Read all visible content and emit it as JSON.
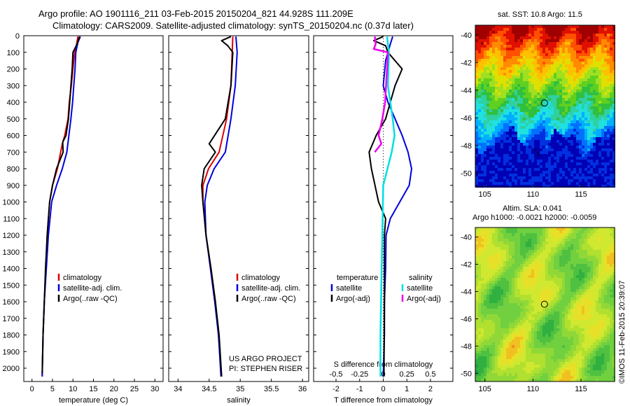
{
  "header": {
    "line1": "Argo profile: AO 1901116_211 03-Feb-2015 20150204_821 44.928S 111.209E",
    "line2": "Climatology: CARS2009. Satellite-adjusted climatology: synTS_20150204.nc (0.37d later)"
  },
  "credit": "©IMOS 11-Feb-2015 20:39:07",
  "colors": {
    "climatology": "#dd0000",
    "satellite": "#0000dd",
    "argo": "#000000",
    "satellite_s": "#00e0e0",
    "argo_s": "#ee00ee"
  },
  "chart_data": [
    {
      "type": "line",
      "panel": "temperature",
      "xlabel": "temperature (deg C)",
      "xticks": [
        "0",
        "5",
        "10",
        "15",
        "20",
        "25",
        "30"
      ],
      "xlim": [
        -2,
        32
      ],
      "ylim": [
        0,
        2080
      ],
      "yticks": [
        "0",
        "100",
        "200",
        "300",
        "400",
        "500",
        "600",
        "700",
        "800",
        "900",
        "1000",
        "1100",
        "1200",
        "1300",
        "1400",
        "1500",
        "1600",
        "1700",
        "1800",
        "1900",
        "2000"
      ],
      "legend": {
        "position": "lower-middle",
        "entries": [
          "climatology",
          "satellite-adj. clim.",
          "Argo(..raw -QC)"
        ]
      },
      "series": [
        {
          "name": "climatology",
          "color": "climatology",
          "points": [
            [
              11.2,
              5
            ],
            [
              10.9,
              50
            ],
            [
              10.4,
              100
            ],
            [
              10.0,
              200
            ],
            [
              9.6,
              300
            ],
            [
              9.1,
              400
            ],
            [
              8.8,
              500
            ],
            [
              8.0,
              600
            ],
            [
              7.4,
              650
            ],
            [
              6.2,
              800
            ],
            [
              5.0,
              900
            ],
            [
              4.3,
              1000
            ],
            [
              3.7,
              1200
            ],
            [
              3.4,
              1400
            ],
            [
              3.0,
              1600
            ],
            [
              2.7,
              1800
            ],
            [
              2.5,
              2050
            ]
          ]
        },
        {
          "name": "satellite-adj. clim.",
          "color": "satellite",
          "points": [
            [
              11.8,
              5
            ],
            [
              11.2,
              40
            ],
            [
              10.7,
              100
            ],
            [
              10.5,
              200
            ],
            [
              10.2,
              300
            ],
            [
              9.9,
              400
            ],
            [
              9.5,
              500
            ],
            [
              9.0,
              600
            ],
            [
              8.5,
              700
            ],
            [
              7.4,
              800
            ],
            [
              6.0,
              900
            ],
            [
              4.8,
              1000
            ],
            [
              4.0,
              1200
            ],
            [
              3.5,
              1400
            ],
            [
              3.0,
              1600
            ],
            [
              2.7,
              1800
            ],
            [
              2.5,
              2050
            ]
          ]
        },
        {
          "name": "Argo(..raw -QC)",
          "color": "argo",
          "points": [
            [
              11.6,
              5
            ],
            [
              11.0,
              50
            ],
            [
              10.0,
              100
            ],
            [
              9.8,
              200
            ],
            [
              9.5,
              300
            ],
            [
              9.2,
              400
            ],
            [
              8.9,
              500
            ],
            [
              8.3,
              600
            ],
            [
              7.5,
              640
            ],
            [
              7.6,
              700
            ],
            [
              6.0,
              800
            ],
            [
              5.0,
              900
            ],
            [
              4.3,
              1000
            ],
            [
              3.7,
              1200
            ],
            [
              3.3,
              1400
            ],
            [
              3.0,
              1600
            ],
            [
              2.7,
              1800
            ],
            [
              2.5,
              2030
            ]
          ]
        }
      ]
    },
    {
      "type": "line",
      "panel": "salinity",
      "xlabel": "salinity",
      "xticks": [
        "34",
        "34.5",
        "35",
        "35.5",
        "36"
      ],
      "xlim": [
        33.85,
        36.1
      ],
      "ylim": [
        0,
        2080
      ],
      "legend": {
        "position": "lower-middle",
        "entries": [
          "climatology",
          "satellite-adj. clim.",
          "Argo(..raw -QC)"
        ]
      },
      "annotations": [
        "US ARGO PROJECT",
        "PI: STEPHEN RISER"
      ],
      "series": [
        {
          "name": "climatology",
          "color": "climatology",
          "points": [
            [
              34.88,
              5
            ],
            [
              34.87,
              100
            ],
            [
              34.85,
              300
            ],
            [
              34.78,
              500
            ],
            [
              34.66,
              700
            ],
            [
              34.49,
              800
            ],
            [
              34.4,
              900
            ],
            [
              34.4,
              1000
            ],
            [
              34.45,
              1200
            ],
            [
              34.53,
              1400
            ],
            [
              34.6,
              1600
            ],
            [
              34.65,
              1800
            ],
            [
              34.7,
              2050
            ]
          ]
        },
        {
          "name": "satellite-adj. clim.",
          "color": "satellite",
          "points": [
            [
              34.93,
              5
            ],
            [
              34.95,
              100
            ],
            [
              34.92,
              300
            ],
            [
              34.85,
              500
            ],
            [
              34.76,
              700
            ],
            [
              34.58,
              800
            ],
            [
              34.47,
              900
            ],
            [
              34.43,
              1000
            ],
            [
              34.45,
              1200
            ],
            [
              34.52,
              1400
            ],
            [
              34.59,
              1600
            ],
            [
              34.65,
              1800
            ],
            [
              34.69,
              2050
            ]
          ]
        },
        {
          "name": "Argo(..raw -QC)",
          "color": "argo",
          "points": [
            [
              34.85,
              5
            ],
            [
              34.7,
              30
            ],
            [
              34.8,
              60
            ],
            [
              34.88,
              100
            ],
            [
              34.85,
              300
            ],
            [
              34.76,
              500
            ],
            [
              34.5,
              650
            ],
            [
              34.6,
              700
            ],
            [
              34.42,
              800
            ],
            [
              34.38,
              900
            ],
            [
              34.4,
              1000
            ],
            [
              34.45,
              1200
            ],
            [
              34.53,
              1400
            ],
            [
              34.6,
              1600
            ],
            [
              34.66,
              1800
            ],
            [
              34.7,
              2050
            ]
          ]
        }
      ]
    },
    {
      "type": "line",
      "panel": "difference",
      "xlabel": "T difference from climatology",
      "xlabel_top": "S difference from climatology",
      "xticks": [
        "-2",
        "-1",
        "0",
        "1",
        "2"
      ],
      "xticks_top": [
        "-0.5",
        "-0.25",
        "0",
        "0.25",
        "0.5"
      ],
      "xlim": [
        -2.95,
        2.95
      ],
      "ylim": [
        0,
        2080
      ],
      "legend": {
        "position": "lower-middle",
        "columns": [
          {
            "heading": "temperature",
            "entries": [
              "satellite",
              "Argo(-adj)"
            ]
          },
          {
            "heading": "salinity",
            "entries": [
              "satellite",
              "Argo(-adj)"
            ]
          }
        ]
      },
      "series": [
        {
          "name": "T satellite",
          "color": "satellite",
          "points": [
            [
              0.4,
              5
            ],
            [
              0.3,
              50
            ],
            [
              0.1,
              150
            ],
            [
              0.0,
              300
            ],
            [
              0.2,
              400
            ],
            [
              0.5,
              500
            ],
            [
              0.8,
              600
            ],
            [
              1.05,
              700
            ],
            [
              1.2,
              800
            ],
            [
              1.1,
              900
            ],
            [
              0.7,
              1000
            ],
            [
              0.3,
              1100
            ],
            [
              0.12,
              1200
            ],
            [
              0.1,
              1400
            ],
            [
              0.05,
              1600
            ],
            [
              0.05,
              1800
            ],
            [
              0.0,
              2050
            ]
          ]
        },
        {
          "name": "T Argo(-adj)",
          "color": "argo",
          "points": [
            [
              0.0,
              5
            ],
            [
              -0.4,
              30
            ],
            [
              0.1,
              60
            ],
            [
              0.2,
              100
            ],
            [
              0.8,
              200
            ],
            [
              0.5,
              300
            ],
            [
              0.3,
              400
            ],
            [
              0.1,
              500
            ],
            [
              -0.3,
              600
            ],
            [
              -0.6,
              700
            ],
            [
              -0.5,
              800
            ],
            [
              -0.2,
              1000
            ],
            [
              0.1,
              1100
            ],
            [
              0.05,
              1200
            ],
            [
              0.05,
              1600
            ],
            [
              0.03,
              2050
            ]
          ]
        },
        {
          "name": "S satellite",
          "color": "satellite_s",
          "points": [
            [
              0.04,
              5
            ],
            [
              0.06,
              100
            ],
            [
              0.05,
              300
            ],
            [
              0.1,
              500
            ],
            [
              0.12,
              600
            ],
            [
              0.09,
              700
            ],
            [
              0.0,
              900
            ],
            [
              -0.01,
              1200
            ],
            [
              -0.02,
              1500
            ],
            [
              -0.03,
              1800
            ],
            [
              -0.03,
              2050
            ]
          ]
        },
        {
          "name": "S Argo(-adj)",
          "color": "argo_s",
          "points": [
            [
              -0.09,
              5
            ],
            [
              -0.08,
              50
            ],
            [
              -0.1,
              80
            ],
            [
              0.05,
              100
            ],
            [
              0.04,
              200
            ],
            [
              0.03,
              300
            ],
            [
              0.02,
              400
            ],
            [
              -0.01,
              500
            ],
            [
              -0.05,
              600
            ],
            [
              -0.02,
              650
            ],
            [
              -0.09,
              700
            ]
          ]
        }
      ]
    },
    {
      "type": "heatmap",
      "panel": "sst_map",
      "title": "sat. SST: 10.8 Argo: 11.5",
      "xticks": [
        "105",
        "110",
        "115"
      ],
      "yticks": [
        "-40",
        "-42",
        "-44",
        "-46",
        "-48",
        "-50"
      ],
      "xlim": [
        104,
        118.5
      ],
      "ylim": [
        -51,
        -39.3
      ],
      "marker": [
        111.2,
        -44.93
      ]
    },
    {
      "type": "heatmap",
      "panel": "sla_map",
      "title": "Altim. SLA: 0.041",
      "subtitle": "Argo h1000: -0.0021 h2000: -0.0059",
      "xticks": [
        "105",
        "110",
        "115"
      ],
      "yticks": [
        "-40",
        "-42",
        "-44",
        "-46",
        "-48",
        "-50"
      ],
      "xlim": [
        104,
        118.5
      ],
      "ylim": [
        -50.6,
        -39.3
      ],
      "marker": [
        111.2,
        -44.93
      ]
    }
  ]
}
